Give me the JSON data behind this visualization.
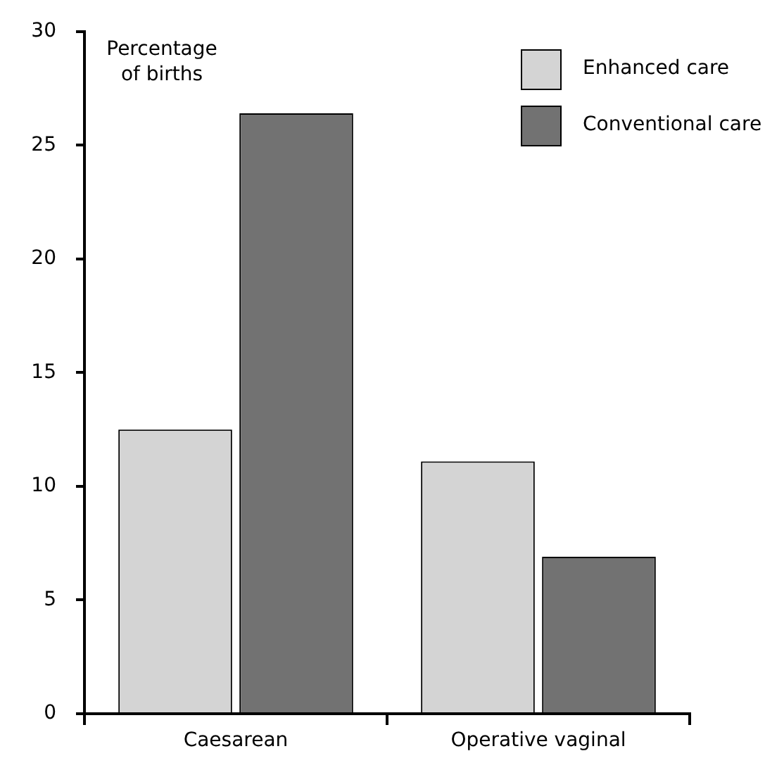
{
  "chart_data": {
    "type": "bar",
    "ylabel": "Percentage of births",
    "categories": [
      "Caesarean",
      "Operative vaginal"
    ],
    "series": [
      {
        "name": "Enhanced care",
        "color": "#d4d4d4",
        "values": [
          12.5,
          11.1
        ]
      },
      {
        "name": "Conventional care",
        "color": "#727272",
        "values": [
          26.4,
          6.9
        ]
      }
    ],
    "ylim": [
      0,
      30
    ],
    "yticks": [
      0,
      5,
      10,
      15,
      20,
      25,
      30
    ],
    "grid": false,
    "legend": "top right"
  }
}
